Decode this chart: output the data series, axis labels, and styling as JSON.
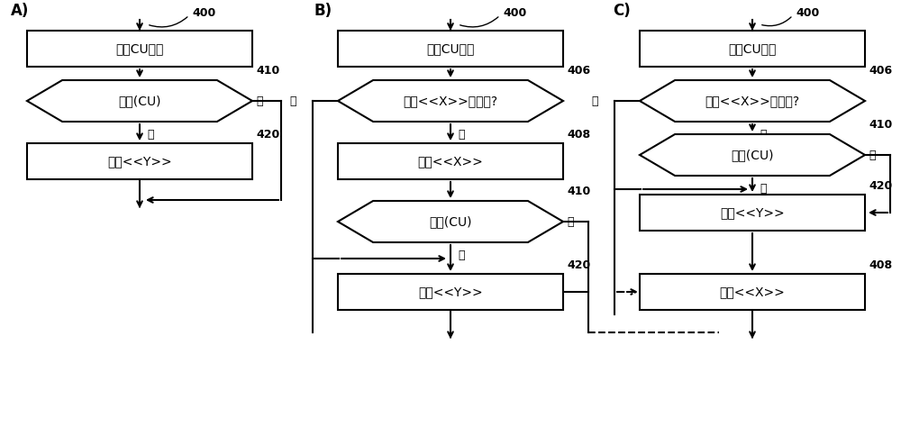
{
  "bg_color": "#ffffff",
  "text_color": "#000000",
  "box_color": "#ffffff",
  "box_edge": "#000000",
  "label_A": "A)",
  "label_B": "B)",
  "label_C": "C)",
  "text_decode": "解码CU参数",
  "text_condition_X": "过程<<X>>被使用?",
  "text_proc_X": "过程<<X>>",
  "text_condition_cu": "条件(CU)",
  "text_proc_Y": "过程<<Y>>",
  "yes": "是",
  "no": "否",
  "ref_400": "400",
  "ref_406": "406",
  "ref_408": "408",
  "ref_410": "410",
  "ref_420": "420",
  "lw": 1.5,
  "font_size": 10,
  "font_size_label": 12,
  "font_size_ref": 9
}
